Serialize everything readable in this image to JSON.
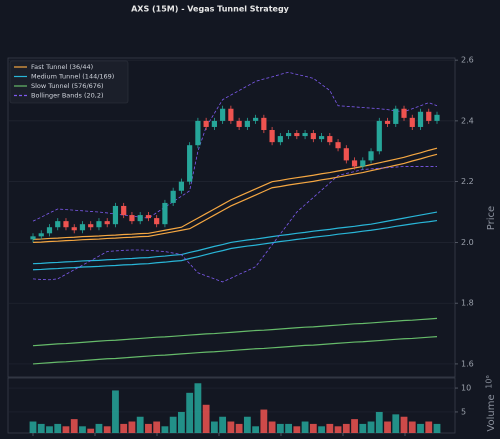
{
  "chart_data": {
    "type": "candlestick",
    "title": "AXS (15M) - Vegas Tunnel Strategy",
    "ylabel": "Price",
    "ylim": [
      1.557,
      2.607
    ],
    "yticks": [
      1.6,
      1.8,
      {
        "value": 2,
        "label": "2.0"
      },
      2.2,
      2.4,
      2.6
    ],
    "grid": true,
    "legend": "upper left",
    "up_color": "#26a69a",
    "down_color": "#ef5350",
    "open": [
      2.01,
      2.02,
      2.03,
      2.05,
      2.07,
      2.05,
      2.04,
      2.06,
      2.05,
      2.07,
      2.06,
      2.12,
      2.09,
      2.07,
      2.09,
      2.08,
      2.06,
      2.13,
      2.17,
      2.2,
      2.32,
      2.4,
      2.38,
      2.4,
      2.44,
      2.4,
      2.38,
      2.4,
      2.41,
      2.37,
      2.33,
      2.35,
      2.36,
      2.35,
      2.36,
      2.34,
      2.35,
      2.33,
      2.31,
      2.27,
      2.25,
      2.27,
      2.3,
      2.4,
      2.39,
      2.44,
      2.41,
      2.38,
      2.43,
      2.4
    ],
    "high": [
      2.03,
      2.04,
      2.06,
      2.08,
      2.08,
      2.06,
      2.07,
      2.07,
      2.08,
      2.08,
      2.13,
      2.13,
      2.1,
      2.1,
      2.1,
      2.09,
      2.14,
      2.18,
      2.21,
      2.33,
      2.41,
      2.41,
      2.41,
      2.45,
      2.45,
      2.41,
      2.41,
      2.42,
      2.42,
      2.38,
      2.36,
      2.37,
      2.37,
      2.37,
      2.37,
      2.36,
      2.36,
      2.34,
      2.32,
      2.28,
      2.28,
      2.31,
      2.41,
      2.41,
      2.45,
      2.45,
      2.42,
      2.44,
      2.44,
      2.43
    ],
    "low": [
      2.0,
      2.01,
      2.02,
      2.04,
      2.04,
      2.03,
      2.03,
      2.04,
      2.04,
      2.05,
      2.05,
      2.08,
      2.06,
      2.06,
      2.07,
      2.05,
      2.05,
      2.12,
      2.16,
      2.19,
      2.31,
      2.37,
      2.37,
      2.39,
      2.39,
      2.37,
      2.37,
      2.39,
      2.36,
      2.32,
      2.32,
      2.34,
      2.34,
      2.34,
      2.33,
      2.33,
      2.32,
      2.3,
      2.26,
      2.24,
      2.24,
      2.26,
      2.29,
      2.38,
      2.38,
      2.4,
      2.37,
      2.37,
      2.39,
      2.39
    ],
    "close": [
      2.02,
      2.03,
      2.05,
      2.07,
      2.05,
      2.04,
      2.06,
      2.05,
      2.07,
      2.06,
      2.12,
      2.09,
      2.07,
      2.09,
      2.08,
      2.06,
      2.13,
      2.17,
      2.2,
      2.32,
      2.4,
      2.38,
      2.4,
      2.44,
      2.4,
      2.38,
      2.4,
      2.41,
      2.37,
      2.33,
      2.35,
      2.36,
      2.35,
      2.36,
      2.34,
      2.35,
      2.33,
      2.31,
      2.27,
      2.25,
      2.27,
      2.3,
      2.4,
      2.39,
      2.44,
      2.41,
      2.38,
      2.43,
      2.4,
      2.42
    ],
    "overlays": [
      {
        "name": "Fast Tunnel (36/44)",
        "color": "#f5a742",
        "dashed": false,
        "upper": [
          2.01,
          2.011,
          2.013,
          2.014,
          2.016,
          2.017,
          2.019,
          2.02,
          2.021,
          2.023,
          2.024,
          2.026,
          2.027,
          2.029,
          2.03,
          2.035,
          2.04,
          2.045,
          2.05,
          2.065,
          2.08,
          2.095,
          2.11,
          2.125,
          2.14,
          2.152,
          2.164,
          2.176,
          2.188,
          2.2,
          2.204,
          2.209,
          2.213,
          2.217,
          2.221,
          2.226,
          2.23,
          2.235,
          2.24,
          2.245,
          2.25,
          2.256,
          2.262,
          2.268,
          2.274,
          2.28,
          2.288,
          2.295,
          2.303,
          2.31
        ],
        "lower": [
          2.0,
          2.001,
          2.003,
          2.004,
          2.006,
          2.007,
          2.009,
          2.01,
          2.011,
          2.013,
          2.014,
          2.016,
          2.017,
          2.019,
          2.02,
          2.025,
          2.03,
          2.035,
          2.04,
          2.045,
          2.06,
          2.075,
          2.09,
          2.105,
          2.12,
          2.132,
          2.144,
          2.156,
          2.168,
          2.18,
          2.184,
          2.189,
          2.193,
          2.197,
          2.201,
          2.206,
          2.21,
          2.215,
          2.22,
          2.225,
          2.23,
          2.236,
          2.242,
          2.248,
          2.254,
          2.26,
          2.268,
          2.275,
          2.283,
          2.29
        ]
      },
      {
        "name": "Medium Tunnel (144/169)",
        "color": "#29b6d8",
        "dashed": false,
        "upper": [
          1.93,
          1.931,
          1.933,
          1.934,
          1.936,
          1.937,
          1.939,
          1.94,
          1.941,
          1.943,
          1.944,
          1.946,
          1.947,
          1.949,
          1.95,
          1.953,
          1.955,
          1.958,
          1.96,
          1.967,
          1.973,
          1.98,
          1.987,
          1.993,
          2.0,
          2.004,
          2.008,
          2.011,
          2.015,
          2.019,
          2.023,
          2.026,
          2.03,
          2.033,
          2.037,
          2.04,
          2.043,
          2.047,
          2.05,
          2.053,
          2.057,
          2.06,
          2.065,
          2.07,
          2.075,
          2.08,
          2.085,
          2.09,
          2.095,
          2.1
        ],
        "lower": [
          1.91,
          1.911,
          1.913,
          1.914,
          1.916,
          1.917,
          1.919,
          1.92,
          1.921,
          1.923,
          1.924,
          1.926,
          1.927,
          1.929,
          1.93,
          1.933,
          1.935,
          1.938,
          1.94,
          1.947,
          1.953,
          1.96,
          1.967,
          1.973,
          1.98,
          1.984,
          1.988,
          1.991,
          1.995,
          1.999,
          2.003,
          2.006,
          2.01,
          2.013,
          2.017,
          2.02,
          2.023,
          2.027,
          2.03,
          2.033,
          2.037,
          2.04,
          2.044,
          2.048,
          2.053,
          2.057,
          2.061,
          2.065,
          2.068,
          2.072
        ]
      },
      {
        "name": "Slow Tunnel (576/676)",
        "color": "#66bb6a",
        "dashed": false,
        "upper": [
          1.66,
          1.662,
          1.664,
          1.666,
          1.667,
          1.669,
          1.671,
          1.673,
          1.675,
          1.677,
          1.678,
          1.68,
          1.682,
          1.684,
          1.686,
          1.688,
          1.689,
          1.691,
          1.693,
          1.695,
          1.697,
          1.699,
          1.7,
          1.702,
          1.704,
          1.706,
          1.708,
          1.71,
          1.711,
          1.713,
          1.715,
          1.717,
          1.719,
          1.721,
          1.722,
          1.724,
          1.726,
          1.728,
          1.73,
          1.732,
          1.733,
          1.735,
          1.737,
          1.739,
          1.741,
          1.743,
          1.744,
          1.746,
          1.748,
          1.75
        ],
        "lower": [
          1.6,
          1.602,
          1.604,
          1.606,
          1.607,
          1.609,
          1.611,
          1.613,
          1.615,
          1.617,
          1.618,
          1.62,
          1.622,
          1.624,
          1.626,
          1.628,
          1.629,
          1.631,
          1.633,
          1.635,
          1.637,
          1.639,
          1.64,
          1.642,
          1.644,
          1.646,
          1.648,
          1.65,
          1.651,
          1.653,
          1.655,
          1.657,
          1.659,
          1.661,
          1.662,
          1.664,
          1.666,
          1.668,
          1.67,
          1.672,
          1.673,
          1.675,
          1.677,
          1.679,
          1.681,
          1.683,
          1.684,
          1.686,
          1.688,
          1.69
        ]
      },
      {
        "name": "Bollinger Bands (20,2)",
        "color": "#7e5bef",
        "dashed": true,
        "upper": [
          2.07,
          2.083,
          2.097,
          2.11,
          2.108,
          2.106,
          2.104,
          2.102,
          2.1,
          2.097,
          2.093,
          2.09,
          2.087,
          2.083,
          2.08,
          2.098,
          2.116,
          2.134,
          2.152,
          2.17,
          2.3,
          2.38,
          2.425,
          2.47,
          2.485,
          2.5,
          2.515,
          2.53,
          2.538,
          2.545,
          2.553,
          2.56,
          2.553,
          2.547,
          2.54,
          2.52,
          2.5,
          2.45,
          2.448,
          2.446,
          2.444,
          2.442,
          2.44,
          2.437,
          2.433,
          2.43,
          2.44,
          2.45,
          2.46,
          2.45
        ],
        "lower": [
          1.88,
          1.878,
          1.877,
          1.88,
          1.895,
          1.91,
          1.925,
          1.94,
          1.955,
          1.97,
          1.972,
          1.974,
          1.975,
          1.975,
          1.974,
          1.972,
          1.97,
          1.965,
          1.96,
          1.93,
          1.9,
          1.89,
          1.88,
          1.87,
          1.882,
          1.895,
          1.907,
          1.92,
          1.956,
          1.992,
          2.028,
          2.064,
          2.1,
          2.124,
          2.148,
          2.172,
          2.196,
          2.22,
          2.227,
          2.233,
          2.24,
          2.242,
          2.244,
          2.246,
          2.248,
          2.25,
          2.25,
          2.25,
          2.25,
          2.25
        ]
      }
    ],
    "volume": {
      "ylabel": "Volume",
      "offset_label": "10⁶",
      "ylim": [
        0.6,
        12.1
      ],
      "yticks": [
        5,
        10
      ],
      "values": [
        3,
        2.5,
        2,
        2.5,
        2,
        3.5,
        2,
        1.5,
        2.5,
        2,
        9.5,
        2.5,
        3,
        4,
        2.5,
        3,
        2,
        4,
        5,
        9,
        11,
        6.5,
        3,
        4,
        3,
        2.5,
        4,
        2,
        5.5,
        3,
        2.5,
        2.5,
        2,
        3,
        2.5,
        2,
        2.5,
        2,
        2.5,
        3.5,
        2.5,
        3,
        5,
        3,
        4.5,
        4,
        3,
        2.5,
        3,
        2.5
      ]
    }
  }
}
